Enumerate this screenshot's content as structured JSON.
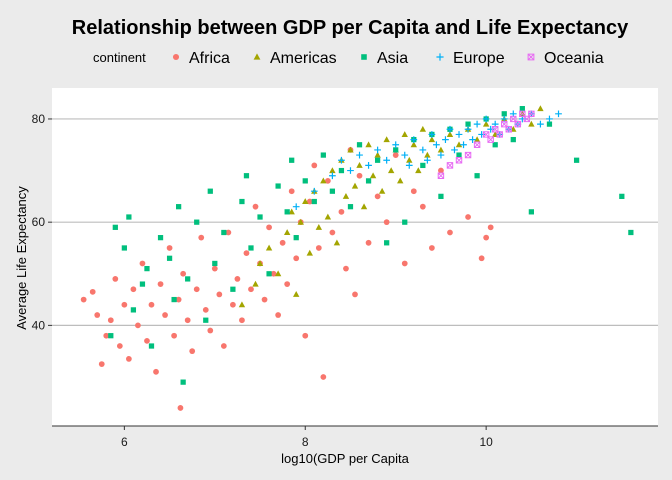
{
  "chart_data": {
    "type": "scatter",
    "title": "Relationship between GDP per Capita and Life Expectancy",
    "xlabel": "log10(GDP per Capita",
    "ylabel": "Average Life Expectancy",
    "xlim": [
      5.2,
      11.9
    ],
    "ylim": [
      20.5,
      86
    ],
    "x_ticks": [
      6,
      8,
      10
    ],
    "y_ticks": [
      40,
      60,
      80
    ],
    "grid": "horizontal major lines",
    "legend": {
      "title": "continent",
      "position": "top"
    },
    "series": [
      {
        "name": "Africa",
        "color": "#F8766D",
        "marker": "circle",
        "points": [
          [
            5.55,
            45
          ],
          [
            5.65,
            46.5
          ],
          [
            5.7,
            42
          ],
          [
            5.75,
            32.5
          ],
          [
            5.8,
            38
          ],
          [
            5.85,
            41
          ],
          [
            5.9,
            49
          ],
          [
            5.95,
            36
          ],
          [
            6.0,
            44
          ],
          [
            6.05,
            33.5
          ],
          [
            6.1,
            47
          ],
          [
            6.15,
            40
          ],
          [
            6.2,
            52
          ],
          [
            6.25,
            37
          ],
          [
            6.3,
            44
          ],
          [
            6.35,
            31
          ],
          [
            6.4,
            48
          ],
          [
            6.45,
            42
          ],
          [
            6.5,
            55
          ],
          [
            6.55,
            38
          ],
          [
            6.6,
            45
          ],
          [
            6.62,
            24
          ],
          [
            6.65,
            50
          ],
          [
            6.7,
            41
          ],
          [
            6.75,
            35
          ],
          [
            6.8,
            47
          ],
          [
            6.85,
            57
          ],
          [
            6.9,
            43
          ],
          [
            6.95,
            39
          ],
          [
            7.0,
            51
          ],
          [
            7.05,
            46
          ],
          [
            7.1,
            36
          ],
          [
            7.15,
            58
          ],
          [
            7.2,
            44
          ],
          [
            7.25,
            49
          ],
          [
            7.3,
            41
          ],
          [
            7.35,
            54
          ],
          [
            7.4,
            47
          ],
          [
            7.45,
            63
          ],
          [
            7.5,
            52
          ],
          [
            7.55,
            45
          ],
          [
            7.6,
            59
          ],
          [
            7.65,
            50
          ],
          [
            7.7,
            42
          ],
          [
            7.75,
            56
          ],
          [
            7.8,
            48
          ],
          [
            7.85,
            66
          ],
          [
            7.9,
            53
          ],
          [
            7.95,
            60
          ],
          [
            8.0,
            38
          ],
          [
            8.05,
            64
          ],
          [
            8.1,
            71
          ],
          [
            8.15,
            55
          ],
          [
            8.2,
            30
          ],
          [
            8.25,
            68
          ],
          [
            8.3,
            58
          ],
          [
            8.4,
            62
          ],
          [
            8.45,
            51
          ],
          [
            8.5,
            74
          ],
          [
            8.55,
            46
          ],
          [
            8.6,
            69
          ],
          [
            8.7,
            56
          ],
          [
            8.8,
            65
          ],
          [
            8.9,
            60
          ],
          [
            9.0,
            73
          ],
          [
            9.1,
            52
          ],
          [
            9.2,
            66
          ],
          [
            9.3,
            63
          ],
          [
            9.4,
            55
          ],
          [
            9.5,
            70
          ],
          [
            9.6,
            58
          ],
          [
            9.8,
            61
          ],
          [
            9.95,
            53
          ],
          [
            10.0,
            57
          ],
          [
            10.05,
            59
          ]
        ]
      },
      {
        "name": "Americas",
        "color": "#A3A500",
        "marker": "triangle",
        "points": [
          [
            7.3,
            44
          ],
          [
            7.45,
            48
          ],
          [
            7.5,
            52
          ],
          [
            7.6,
            55
          ],
          [
            7.7,
            50
          ],
          [
            7.8,
            58
          ],
          [
            7.85,
            62
          ],
          [
            7.9,
            46
          ],
          [
            7.95,
            60
          ],
          [
            8.0,
            64
          ],
          [
            8.05,
            54
          ],
          [
            8.1,
            66
          ],
          [
            8.15,
            59
          ],
          [
            8.2,
            68
          ],
          [
            8.25,
            61
          ],
          [
            8.3,
            70
          ],
          [
            8.35,
            56
          ],
          [
            8.4,
            72
          ],
          [
            8.45,
            65
          ],
          [
            8.5,
            74
          ],
          [
            8.55,
            67
          ],
          [
            8.6,
            71
          ],
          [
            8.65,
            63
          ],
          [
            8.7,
            75
          ],
          [
            8.75,
            69
          ],
          [
            8.8,
            73
          ],
          [
            8.85,
            66
          ],
          [
            8.9,
            76
          ],
          [
            8.95,
            70
          ],
          [
            9.0,
            74
          ],
          [
            9.05,
            68
          ],
          [
            9.1,
            77
          ],
          [
            9.15,
            72
          ],
          [
            9.2,
            75
          ],
          [
            9.25,
            70
          ],
          [
            9.3,
            78
          ],
          [
            9.35,
            73
          ],
          [
            9.4,
            76
          ],
          [
            9.5,
            74
          ],
          [
            9.6,
            77
          ],
          [
            9.7,
            75
          ],
          [
            9.8,
            78
          ],
          [
            9.9,
            76
          ],
          [
            10.0,
            79
          ],
          [
            10.1,
            77
          ],
          [
            10.2,
            80
          ],
          [
            10.3,
            78
          ],
          [
            10.4,
            81
          ],
          [
            10.5,
            79
          ],
          [
            10.6,
            82
          ]
        ]
      },
      {
        "name": "Asia",
        "color": "#00BF7D",
        "marker": "square",
        "points": [
          [
            5.85,
            38
          ],
          [
            5.9,
            59
          ],
          [
            6.0,
            55
          ],
          [
            6.05,
            61
          ],
          [
            6.1,
            43
          ],
          [
            6.2,
            48
          ],
          [
            6.25,
            51
          ],
          [
            6.3,
            36
          ],
          [
            6.4,
            57
          ],
          [
            6.5,
            53
          ],
          [
            6.55,
            45
          ],
          [
            6.6,
            63
          ],
          [
            6.65,
            29
          ],
          [
            6.7,
            49
          ],
          [
            6.8,
            60
          ],
          [
            6.9,
            41
          ],
          [
            6.95,
            66
          ],
          [
            7.0,
            52
          ],
          [
            7.1,
            58
          ],
          [
            7.2,
            47
          ],
          [
            7.3,
            64
          ],
          [
            7.35,
            69
          ],
          [
            7.4,
            55
          ],
          [
            7.5,
            61
          ],
          [
            7.6,
            50
          ],
          [
            7.7,
            67
          ],
          [
            7.8,
            62
          ],
          [
            7.85,
            72
          ],
          [
            7.9,
            57
          ],
          [
            8.0,
            68
          ],
          [
            8.1,
            64
          ],
          [
            8.2,
            73
          ],
          [
            8.3,
            66
          ],
          [
            8.4,
            70
          ],
          [
            8.5,
            63
          ],
          [
            8.6,
            75
          ],
          [
            8.7,
            68
          ],
          [
            8.8,
            72
          ],
          [
            8.9,
            56
          ],
          [
            9.0,
            74
          ],
          [
            9.1,
            60
          ],
          [
            9.2,
            76
          ],
          [
            9.3,
            71
          ],
          [
            9.4,
            77
          ],
          [
            9.5,
            65
          ],
          [
            9.6,
            78
          ],
          [
            9.7,
            73
          ],
          [
            9.8,
            79
          ],
          [
            9.9,
            69
          ],
          [
            10.0,
            80
          ],
          [
            10.1,
            75
          ],
          [
            10.2,
            81
          ],
          [
            10.3,
            76
          ],
          [
            10.4,
            82
          ],
          [
            10.5,
            62
          ],
          [
            10.7,
            79
          ],
          [
            11.0,
            72
          ],
          [
            11.5,
            65
          ],
          [
            11.6,
            58
          ]
        ]
      },
      {
        "name": "Europe",
        "color": "#00B0F6",
        "marker": "plus",
        "points": [
          [
            7.9,
            63
          ],
          [
            8.1,
            66
          ],
          [
            8.3,
            69
          ],
          [
            8.4,
            72
          ],
          [
            8.5,
            70
          ],
          [
            8.6,
            73
          ],
          [
            8.7,
            71
          ],
          [
            8.8,
            74
          ],
          [
            8.9,
            72
          ],
          [
            9.0,
            75
          ],
          [
            9.1,
            73
          ],
          [
            9.15,
            71
          ],
          [
            9.2,
            76
          ],
          [
            9.3,
            74
          ],
          [
            9.35,
            72
          ],
          [
            9.4,
            77
          ],
          [
            9.45,
            75
          ],
          [
            9.5,
            73
          ],
          [
            9.55,
            76
          ],
          [
            9.6,
            78
          ],
          [
            9.65,
            74
          ],
          [
            9.7,
            77
          ],
          [
            9.75,
            75
          ],
          [
            9.8,
            78
          ],
          [
            9.85,
            76
          ],
          [
            9.9,
            79
          ],
          [
            9.95,
            77
          ],
          [
            10.0,
            80
          ],
          [
            10.05,
            78
          ],
          [
            10.1,
            79
          ],
          [
            10.15,
            77
          ],
          [
            10.2,
            80
          ],
          [
            10.25,
            78
          ],
          [
            10.3,
            81
          ],
          [
            10.35,
            79
          ],
          [
            10.4,
            80
          ],
          [
            10.5,
            81
          ],
          [
            10.6,
            79
          ],
          [
            10.7,
            80
          ],
          [
            10.8,
            81
          ]
        ]
      },
      {
        "name": "Oceania",
        "color": "#E76BF3",
        "marker": "square-cross",
        "points": [
          [
            9.5,
            69
          ],
          [
            9.6,
            71
          ],
          [
            9.7,
            72
          ],
          [
            9.8,
            73
          ],
          [
            9.9,
            75
          ],
          [
            10.0,
            77
          ],
          [
            10.05,
            76
          ],
          [
            10.1,
            78
          ],
          [
            10.15,
            77
          ],
          [
            10.2,
            79
          ],
          [
            10.25,
            78
          ],
          [
            10.3,
            80
          ],
          [
            10.35,
            79
          ],
          [
            10.4,
            81
          ],
          [
            10.45,
            80
          ],
          [
            10.5,
            81
          ]
        ]
      }
    ]
  }
}
